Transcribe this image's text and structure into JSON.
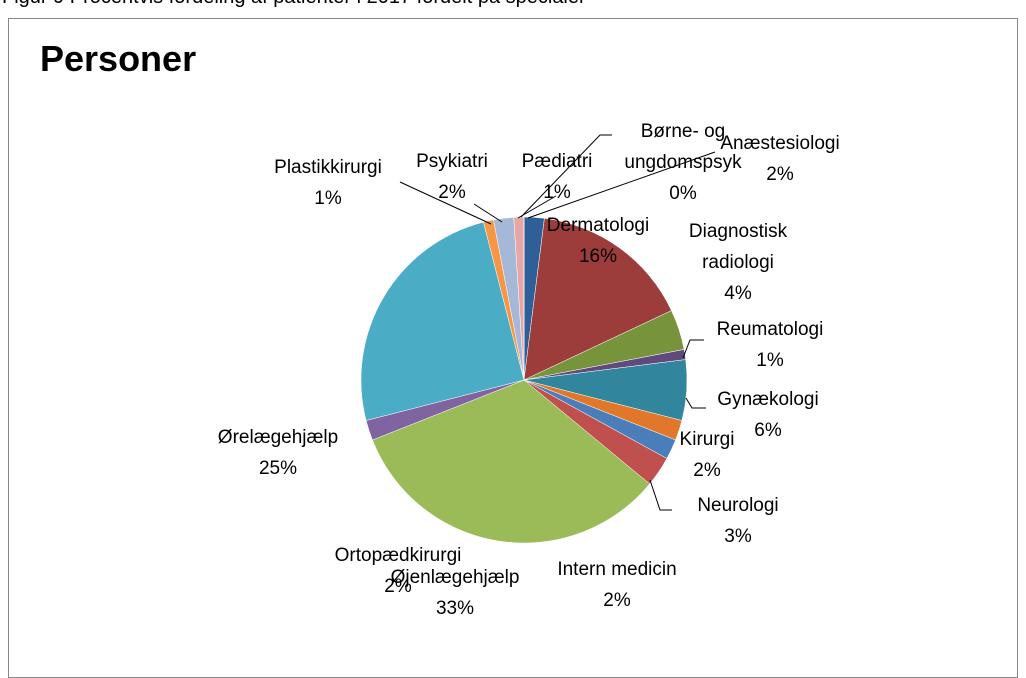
{
  "caption": "Figur 9 Procentvis fordeling af patienter i 2017 fordelt på specialer",
  "chart_data": {
    "type": "pie",
    "title": "Personer",
    "categories": [
      "Anæstesiologi",
      "Dermatologi",
      "Diagnostisk radiologi",
      "Reumatologi",
      "Gynækologi",
      "Kirurgi",
      "Intern medicin",
      "Neurologi",
      "Øjenlægehjælp",
      "Ortopædkirurgi",
      "Ørelægehjælp",
      "Plastikkirurgi",
      "Psykiatri",
      "Pædiatri",
      "Børne- og ungdomspsyk"
    ],
    "values": [
      2,
      16,
      4,
      1,
      6,
      2,
      2,
      3,
      33,
      2,
      25,
      1,
      2,
      1,
      0
    ],
    "value_labels": [
      "2%",
      "16%",
      "4%",
      "1%",
      "6%",
      "2%",
      "2%",
      "3%",
      "33%",
      "2%",
      "25%",
      "1%",
      "2%",
      "1%",
      "0%"
    ],
    "colors": [
      "#2f5f98",
      "#9c3d3b",
      "#77933c",
      "#604a7b",
      "#31859c",
      "#e0772a",
      "#4a7ebb",
      "#c0504d",
      "#9bbb59",
      "#8064a2",
      "#4bacc6",
      "#f79646",
      "#a5b8d8",
      "#e6a6a5",
      "#c3d69b"
    ]
  }
}
